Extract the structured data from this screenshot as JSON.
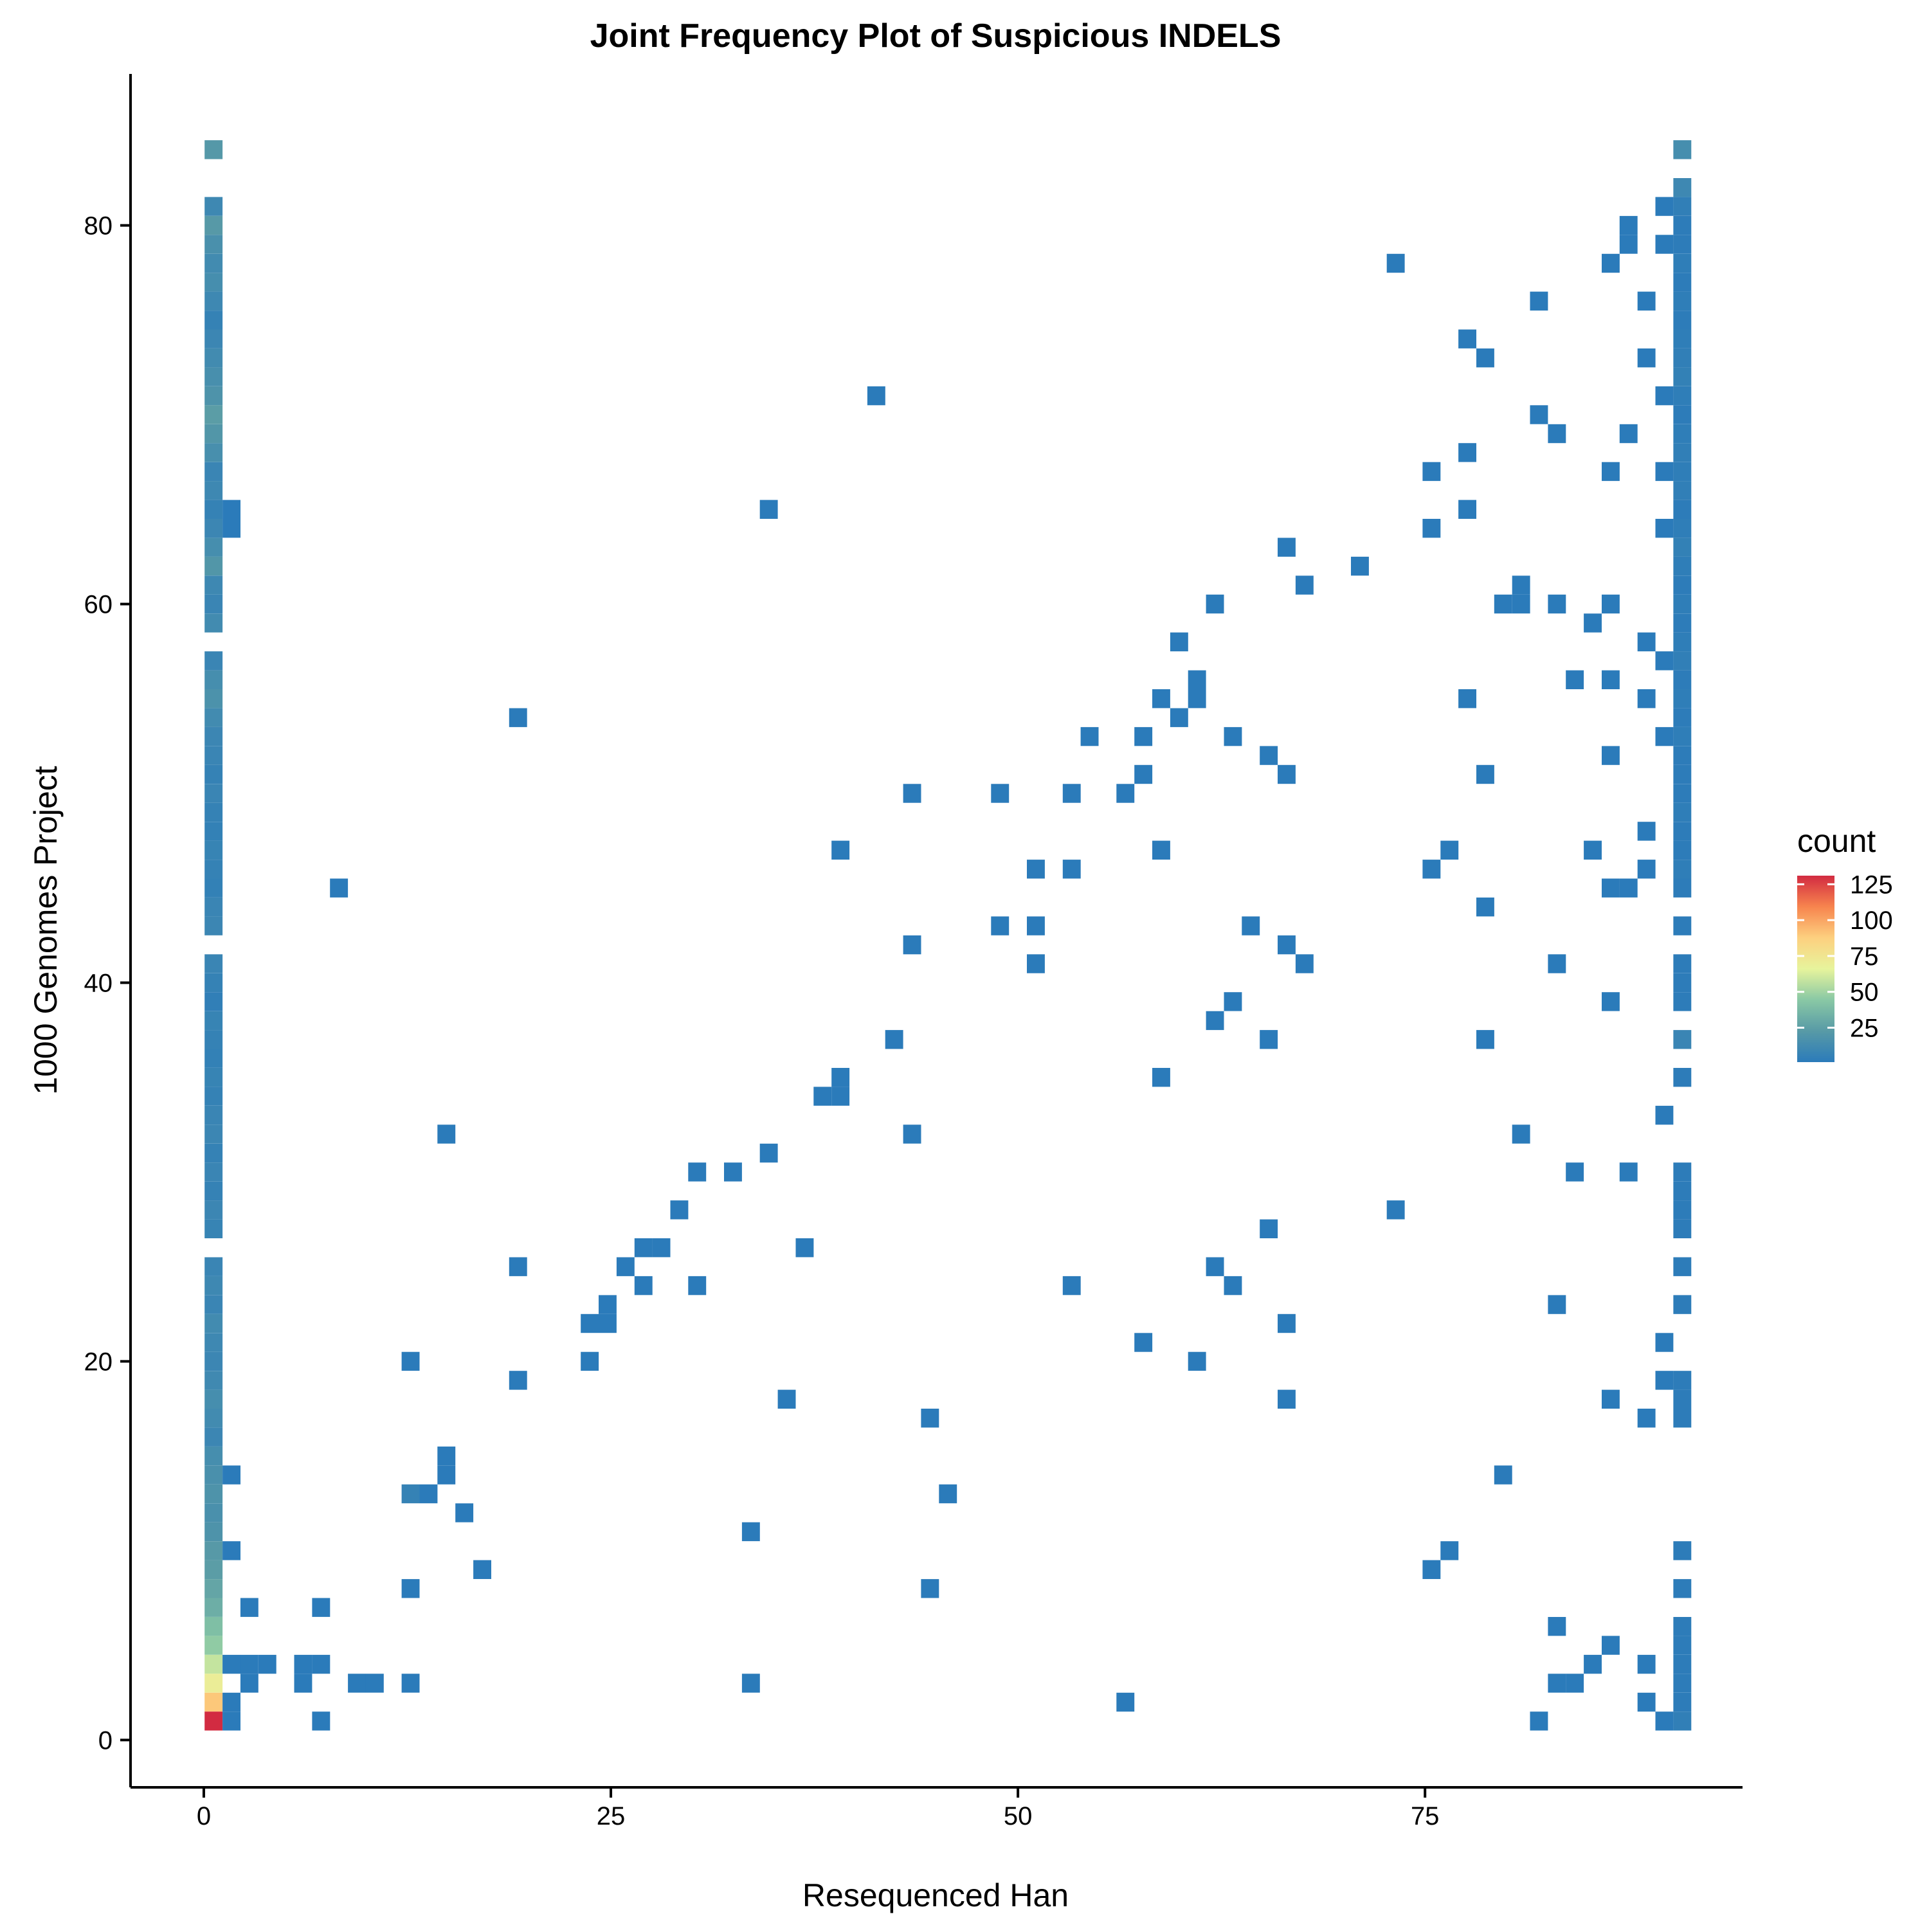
{
  "chart_data": {
    "type": "heatmap",
    "title": "Joint Frequency Plot of Suspicious INDELS",
    "xlabel": "Resequenced Han",
    "ylabel": "1000 Genomes Project",
    "xlim": [
      -4.5,
      94.5
    ],
    "ylim": [
      -2.5,
      88
    ],
    "x_ticks": [
      0,
      25,
      50,
      75
    ],
    "y_ticks": [
      0,
      20,
      40,
      60,
      80
    ],
    "bin_width": 1.1,
    "bin_height": 1.0,
    "grid": false,
    "legend": {
      "title": "count",
      "position": "right",
      "range": [
        1,
        131
      ],
      "ticks": [
        25,
        50,
        75,
        100,
        125
      ],
      "colors": [
        "#2b7bba",
        "#589aa6",
        "#89c8a5",
        "#e7f49c",
        "#fdd07f",
        "#f7844e",
        "#d22b41"
      ]
    },
    "points": [
      [
        0.6,
        84,
        21
      ],
      [
        0.6,
        81,
        10
      ],
      [
        0.6,
        80,
        22
      ],
      [
        0.6,
        79,
        16
      ],
      [
        0.6,
        78,
        12
      ],
      [
        0.6,
        77,
        14
      ],
      [
        0.6,
        76,
        10
      ],
      [
        0.6,
        75,
        6
      ],
      [
        0.6,
        74,
        9
      ],
      [
        0.6,
        73,
        12
      ],
      [
        0.6,
        72,
        15
      ],
      [
        0.6,
        71,
        18
      ],
      [
        0.6,
        70,
        24
      ],
      [
        0.6,
        69,
        20
      ],
      [
        0.6,
        68,
        15
      ],
      [
        0.6,
        67,
        8
      ],
      [
        0.6,
        66,
        10
      ],
      [
        0.6,
        65,
        6
      ],
      [
        0.6,
        64,
        9
      ],
      [
        0.6,
        63,
        14
      ],
      [
        0.6,
        62,
        20
      ],
      [
        0.6,
        61,
        10
      ],
      [
        0.6,
        60,
        8
      ],
      [
        0.6,
        59,
        12
      ],
      [
        0.6,
        57,
        8
      ],
      [
        0.6,
        56,
        14
      ],
      [
        0.6,
        55,
        17
      ],
      [
        0.6,
        54,
        12
      ],
      [
        0.6,
        53,
        9
      ],
      [
        0.6,
        52,
        8
      ],
      [
        0.6,
        51,
        6
      ],
      [
        0.6,
        50,
        8
      ],
      [
        0.6,
        49,
        6
      ],
      [
        0.6,
        48,
        5
      ],
      [
        0.6,
        47,
        7
      ],
      [
        0.6,
        46,
        6
      ],
      [
        0.6,
        45,
        5
      ],
      [
        0.6,
        44,
        8
      ],
      [
        0.6,
        43,
        9
      ],
      [
        0.6,
        41,
        8
      ],
      [
        0.6,
        40,
        6
      ],
      [
        0.6,
        39,
        4
      ],
      [
        0.6,
        38,
        7
      ],
      [
        0.6,
        37,
        6
      ],
      [
        0.6,
        36,
        5
      ],
      [
        0.6,
        35,
        7
      ],
      [
        0.6,
        34,
        6
      ],
      [
        0.6,
        33,
        8
      ],
      [
        0.6,
        32,
        9
      ],
      [
        0.6,
        31,
        6
      ],
      [
        0.6,
        30,
        8
      ],
      [
        0.6,
        29,
        6
      ],
      [
        0.6,
        28,
        9
      ],
      [
        0.6,
        27,
        7
      ],
      [
        0.6,
        25,
        8
      ],
      [
        0.6,
        24,
        10
      ],
      [
        0.6,
        23,
        8
      ],
      [
        0.6,
        22,
        12
      ],
      [
        0.6,
        21,
        10
      ],
      [
        0.6,
        20,
        9
      ],
      [
        0.6,
        19,
        11
      ],
      [
        0.6,
        18,
        14
      ],
      [
        0.6,
        17,
        12
      ],
      [
        0.6,
        16,
        9
      ],
      [
        0.6,
        15,
        14
      ],
      [
        0.6,
        14,
        16
      ],
      [
        0.6,
        13,
        18
      ],
      [
        0.6,
        12,
        16
      ],
      [
        0.6,
        11,
        18
      ],
      [
        0.6,
        10,
        22
      ],
      [
        0.6,
        9,
        24
      ],
      [
        0.6,
        8,
        28
      ],
      [
        0.6,
        7,
        32
      ],
      [
        0.6,
        6,
        40
      ],
      [
        0.6,
        5,
        46
      ],
      [
        0.6,
        4,
        58
      ],
      [
        0.6,
        3,
        70
      ],
      [
        0.6,
        2,
        90
      ],
      [
        0.6,
        1,
        131
      ],
      [
        1.7,
        65,
        1
      ],
      [
        1.7,
        64,
        1
      ],
      [
        1.7,
        14,
        1
      ],
      [
        1.7,
        10,
        1
      ],
      [
        1.7,
        4,
        1
      ],
      [
        1.7,
        2,
        1
      ],
      [
        1.7,
        1,
        1
      ],
      [
        2.8,
        7,
        1
      ],
      [
        2.8,
        4,
        1
      ],
      [
        2.8,
        3,
        1
      ],
      [
        3.9,
        4,
        1
      ],
      [
        6.1,
        4,
        1
      ],
      [
        6.1,
        3,
        1
      ],
      [
        7.2,
        4,
        1
      ],
      [
        7.2,
        7,
        1
      ],
      [
        7.2,
        1,
        1
      ],
      [
        8.3,
        45,
        1
      ],
      [
        9.4,
        3,
        1
      ],
      [
        10.5,
        3,
        1
      ],
      [
        12.7,
        20,
        1
      ],
      [
        12.7,
        13,
        6
      ],
      [
        12.7,
        8,
        1
      ],
      [
        12.7,
        3,
        1
      ],
      [
        13.8,
        13,
        1
      ],
      [
        14.9,
        32,
        1
      ],
      [
        14.9,
        15,
        1
      ],
      [
        14.9,
        14,
        1
      ],
      [
        16.0,
        12,
        1
      ],
      [
        17.1,
        9,
        1
      ],
      [
        19.3,
        54,
        1
      ],
      [
        19.3,
        25,
        1
      ],
      [
        19.3,
        19,
        1
      ],
      [
        23.7,
        22,
        1
      ],
      [
        23.7,
        20,
        1
      ],
      [
        24.8,
        23,
        1
      ],
      [
        24.8,
        22,
        1
      ],
      [
        25.9,
        25,
        1
      ],
      [
        27.0,
        26,
        1
      ],
      [
        27.0,
        24,
        1
      ],
      [
        28.1,
        26,
        1
      ],
      [
        29.2,
        28,
        1
      ],
      [
        30.3,
        30,
        1
      ],
      [
        30.3,
        24,
        1
      ],
      [
        32.5,
        30,
        1
      ],
      [
        33.6,
        11,
        1
      ],
      [
        33.6,
        3,
        1
      ],
      [
        34.7,
        65,
        1
      ],
      [
        34.7,
        31,
        1
      ],
      [
        35.8,
        18,
        1
      ],
      [
        36.9,
        26,
        1
      ],
      [
        38.0,
        34,
        1
      ],
      [
        39.1,
        35,
        1
      ],
      [
        39.1,
        34,
        1
      ],
      [
        39.1,
        47,
        1
      ],
      [
        41.3,
        71,
        1
      ],
      [
        42.4,
        37,
        1
      ],
      [
        43.5,
        50,
        1
      ],
      [
        43.5,
        42,
        1
      ],
      [
        43.5,
        32,
        1
      ],
      [
        44.6,
        17,
        1
      ],
      [
        44.6,
        8,
        1
      ],
      [
        45.7,
        13,
        1
      ],
      [
        48.9,
        50,
        1
      ],
      [
        48.9,
        43,
        1
      ],
      [
        51.1,
        46,
        1
      ],
      [
        51.1,
        43,
        1
      ],
      [
        51.1,
        41,
        1
      ],
      [
        53.3,
        50,
        1
      ],
      [
        53.3,
        46,
        1
      ],
      [
        53.3,
        24,
        1
      ],
      [
        54.4,
        53,
        1
      ],
      [
        56.6,
        50,
        1
      ],
      [
        56.6,
        2,
        1
      ],
      [
        57.7,
        53,
        1
      ],
      [
        57.7,
        51,
        1
      ],
      [
        57.7,
        21,
        1
      ],
      [
        58.8,
        55,
        1
      ],
      [
        58.8,
        47,
        1
      ],
      [
        58.8,
        35,
        1
      ],
      [
        59.9,
        58,
        1
      ],
      [
        59.9,
        54,
        1
      ],
      [
        61.0,
        56,
        1
      ],
      [
        61.0,
        55,
        1
      ],
      [
        61.0,
        20,
        1
      ],
      [
        62.1,
        60,
        1
      ],
      [
        62.1,
        38,
        1
      ],
      [
        62.1,
        25,
        1
      ],
      [
        63.2,
        53,
        1
      ],
      [
        63.2,
        39,
        1
      ],
      [
        63.2,
        24,
        1
      ],
      [
        64.3,
        43,
        1
      ],
      [
        65.4,
        52,
        1
      ],
      [
        65.4,
        37,
        1
      ],
      [
        65.4,
        27,
        1
      ],
      [
        66.5,
        63,
        1
      ],
      [
        66.5,
        51,
        1
      ],
      [
        66.5,
        42,
        1
      ],
      [
        66.5,
        22,
        1
      ],
      [
        66.5,
        18,
        1
      ],
      [
        67.6,
        61,
        1
      ],
      [
        67.6,
        41,
        1
      ],
      [
        71.0,
        62,
        1
      ],
      [
        73.2,
        78,
        1
      ],
      [
        73.2,
        28,
        1
      ],
      [
        75.4,
        67,
        1
      ],
      [
        75.4,
        64,
        1
      ],
      [
        75.4,
        46,
        1
      ],
      [
        75.4,
        9,
        1
      ],
      [
        76.5,
        47,
        1
      ],
      [
        76.5,
        10,
        1
      ],
      [
        77.6,
        74,
        1
      ],
      [
        77.6,
        68,
        1
      ],
      [
        77.6,
        65,
        1
      ],
      [
        77.6,
        55,
        1
      ],
      [
        78.7,
        73,
        1
      ],
      [
        78.7,
        51,
        1
      ],
      [
        78.7,
        44,
        1
      ],
      [
        78.7,
        37,
        1
      ],
      [
        79.8,
        14,
        1
      ],
      [
        79.8,
        60,
        1
      ],
      [
        80.9,
        61,
        1
      ],
      [
        80.9,
        60,
        1
      ],
      [
        80.9,
        32,
        1
      ],
      [
        82.0,
        76,
        1
      ],
      [
        82.0,
        70,
        1
      ],
      [
        82.0,
        1,
        1
      ],
      [
        83.1,
        69,
        1
      ],
      [
        83.1,
        60,
        1
      ],
      [
        83.1,
        41,
        1
      ],
      [
        83.1,
        23,
        1
      ],
      [
        83.1,
        6,
        1
      ],
      [
        83.1,
        3,
        1
      ],
      [
        84.2,
        56,
        1
      ],
      [
        84.2,
        30,
        1
      ],
      [
        84.2,
        3,
        1
      ],
      [
        85.3,
        59,
        1
      ],
      [
        85.3,
        47,
        1
      ],
      [
        85.3,
        4,
        1
      ],
      [
        86.4,
        78,
        1
      ],
      [
        86.4,
        67,
        1
      ],
      [
        86.4,
        60,
        1
      ],
      [
        86.4,
        56,
        1
      ],
      [
        86.4,
        52,
        1
      ],
      [
        86.4,
        45,
        1
      ],
      [
        86.4,
        39,
        1
      ],
      [
        86.4,
        18,
        1
      ],
      [
        86.4,
        5,
        1
      ],
      [
        87.5,
        80,
        1
      ],
      [
        87.5,
        79,
        1
      ],
      [
        87.5,
        69,
        1
      ],
      [
        87.5,
        45,
        1
      ],
      [
        87.5,
        30,
        1
      ],
      [
        88.6,
        76,
        1
      ],
      [
        88.6,
        73,
        1
      ],
      [
        88.6,
        58,
        1
      ],
      [
        88.6,
        55,
        1
      ],
      [
        88.6,
        48,
        1
      ],
      [
        88.6,
        46,
        1
      ],
      [
        88.6,
        17,
        1
      ],
      [
        88.6,
        4,
        1
      ],
      [
        88.6,
        2,
        1
      ],
      [
        89.7,
        81,
        1
      ],
      [
        89.7,
        79,
        1
      ],
      [
        89.7,
        71,
        1
      ],
      [
        89.7,
        67,
        1
      ],
      [
        89.7,
        64,
        1
      ],
      [
        89.7,
        57,
        1
      ],
      [
        89.7,
        53,
        1
      ],
      [
        89.7,
        33,
        1
      ],
      [
        89.7,
        21,
        1
      ],
      [
        89.7,
        19,
        1
      ],
      [
        89.7,
        1,
        1
      ],
      [
        90.8,
        84,
        14
      ],
      [
        90.8,
        82,
        10
      ],
      [
        90.8,
        81,
        4
      ],
      [
        90.8,
        80,
        2
      ],
      [
        90.8,
        79,
        2
      ],
      [
        90.8,
        78,
        3
      ],
      [
        90.8,
        77,
        2
      ],
      [
        90.8,
        76,
        3
      ],
      [
        90.8,
        75,
        2
      ],
      [
        90.8,
        74,
        3
      ],
      [
        90.8,
        73,
        4
      ],
      [
        90.8,
        72,
        5
      ],
      [
        90.8,
        71,
        3
      ],
      [
        90.8,
        70,
        2
      ],
      [
        90.8,
        69,
        3
      ],
      [
        90.8,
        68,
        4
      ],
      [
        90.8,
        67,
        3
      ],
      [
        90.8,
        66,
        4
      ],
      [
        90.8,
        65,
        2
      ],
      [
        90.8,
        64,
        3
      ],
      [
        90.8,
        63,
        5
      ],
      [
        90.8,
        62,
        3
      ],
      [
        90.8,
        61,
        2
      ],
      [
        90.8,
        60,
        3
      ],
      [
        90.8,
        59,
        2
      ],
      [
        90.8,
        58,
        3
      ],
      [
        90.8,
        57,
        4
      ],
      [
        90.8,
        56,
        2
      ],
      [
        90.8,
        55,
        3
      ],
      [
        90.8,
        54,
        2
      ],
      [
        90.8,
        53,
        3
      ],
      [
        90.8,
        52,
        2
      ],
      [
        90.8,
        51,
        2
      ],
      [
        90.8,
        50,
        2
      ],
      [
        90.8,
        49,
        3
      ],
      [
        90.8,
        48,
        2
      ],
      [
        90.8,
        47,
        2
      ],
      [
        90.8,
        46,
        3
      ],
      [
        90.8,
        45,
        2
      ],
      [
        90.8,
        43,
        2
      ],
      [
        90.8,
        41,
        2
      ],
      [
        90.8,
        40,
        2
      ],
      [
        90.8,
        39,
        2
      ],
      [
        90.8,
        37,
        8
      ],
      [
        90.8,
        35,
        2
      ],
      [
        90.8,
        30,
        2
      ],
      [
        90.8,
        29,
        2
      ],
      [
        90.8,
        28,
        2
      ],
      [
        90.8,
        27,
        2
      ],
      [
        90.8,
        25,
        2
      ],
      [
        90.8,
        23,
        2
      ],
      [
        90.8,
        19,
        2
      ],
      [
        90.8,
        18,
        2
      ],
      [
        90.8,
        17,
        2
      ],
      [
        90.8,
        10,
        2
      ],
      [
        90.8,
        8,
        2
      ],
      [
        90.8,
        6,
        2
      ],
      [
        90.8,
        5,
        2
      ],
      [
        90.8,
        4,
        2
      ],
      [
        90.8,
        3,
        2
      ],
      [
        90.8,
        2,
        2
      ],
      [
        90.8,
        1,
        4
      ]
    ]
  }
}
